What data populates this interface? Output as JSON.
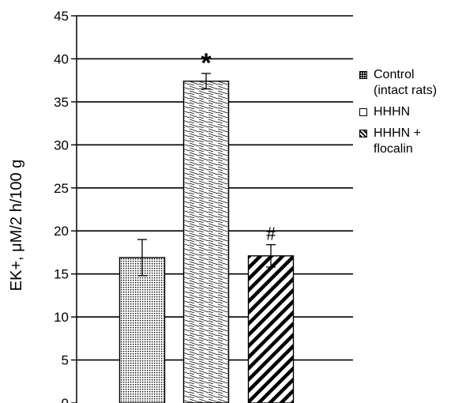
{
  "chart_data": {
    "type": "bar",
    "ylabel": "EK+, μM/2 h/100 g",
    "xlabel": "",
    "ylim": [
      0,
      45
    ],
    "yticks": [
      0,
      5,
      10,
      15,
      20,
      25,
      30,
      35,
      40,
      45
    ],
    "grid": true,
    "legend_position": "right",
    "categories": [
      "Control (intact rats)",
      "HHHN",
      "HHHN + flocalin"
    ],
    "values": [
      16.9,
      37.4,
      17.1
    ],
    "errors": [
      2.1,
      0.9,
      1.3
    ],
    "annotations": [
      "",
      "*",
      "#"
    ],
    "colors": {
      "axis": "#000000",
      "bar_fill": "#ffffff"
    }
  },
  "legend": [
    {
      "label_line1": "Control",
      "label_line2": "(intact rats)"
    },
    {
      "label_line1": "HHHN",
      "label_line2": ""
    },
    {
      "label_line1": "HHHN +",
      "label_line2": "flocalin"
    }
  ]
}
